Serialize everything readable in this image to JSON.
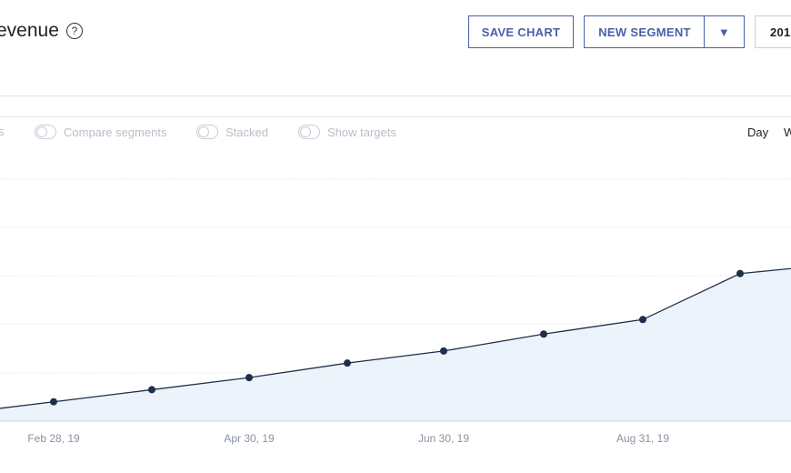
{
  "header": {
    "title": "evenue",
    "help_icon": "?"
  },
  "toolbar": {
    "save_chart": "SAVE CHART",
    "new_segment": "NEW SEGMENT",
    "segment_dropdown_icon": "▼",
    "year": "201"
  },
  "toggles": [
    {
      "label": "s"
    },
    {
      "label": "Compare segments"
    },
    {
      "label": "Stacked"
    },
    {
      "label": "Show targets"
    }
  ],
  "period": {
    "day": "Day",
    "week": "W"
  },
  "colors": {
    "accent": "#4a5fa8",
    "line": "#1d2f4a",
    "area": "#edf3fb"
  },
  "chart_data": {
    "type": "area",
    "x_tick_labels": [
      "Feb 28, 19",
      "Apr 30, 19",
      "Jun 30, 19",
      "Aug 31, 19"
    ],
    "series": [
      {
        "values": [
          0.3,
          0.8,
          1.3,
          1.8,
          2.4,
          2.9,
          3.6,
          4.2,
          6.1,
          6.5
        ]
      }
    ],
    "ylim": [
      0,
      10
    ],
    "grid": true
  }
}
